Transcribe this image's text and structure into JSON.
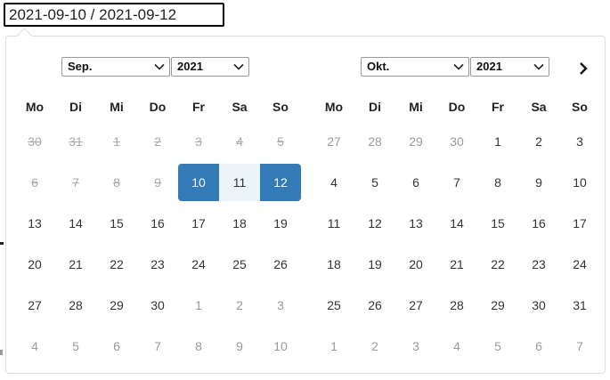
{
  "input": {
    "value": "2021-09-10 / 2021-09-12"
  },
  "weekdays": [
    "Mo",
    "Di",
    "Mi",
    "Do",
    "Fr",
    "Sa",
    "So"
  ],
  "left": {
    "month": "Sep.",
    "year": "2021",
    "weeks": [
      [
        {
          "d": "30",
          "s": "dis"
        },
        {
          "d": "31",
          "s": "dis"
        },
        {
          "d": "1",
          "s": "dis"
        },
        {
          "d": "2",
          "s": "dis"
        },
        {
          "d": "3",
          "s": "dis"
        },
        {
          "d": "4",
          "s": "dis"
        },
        {
          "d": "5",
          "s": "dis"
        }
      ],
      [
        {
          "d": "6",
          "s": "dis"
        },
        {
          "d": "7",
          "s": "dis"
        },
        {
          "d": "8",
          "s": "dis"
        },
        {
          "d": "9",
          "s": "dis"
        },
        {
          "d": "10",
          "s": "start"
        },
        {
          "d": "11",
          "s": "range"
        },
        {
          "d": "12",
          "s": "end"
        }
      ],
      [
        {
          "d": "13",
          "s": ""
        },
        {
          "d": "14",
          "s": ""
        },
        {
          "d": "15",
          "s": ""
        },
        {
          "d": "16",
          "s": ""
        },
        {
          "d": "17",
          "s": ""
        },
        {
          "d": "18",
          "s": ""
        },
        {
          "d": "19",
          "s": ""
        }
      ],
      [
        {
          "d": "20",
          "s": ""
        },
        {
          "d": "21",
          "s": ""
        },
        {
          "d": "22",
          "s": ""
        },
        {
          "d": "23",
          "s": ""
        },
        {
          "d": "24",
          "s": ""
        },
        {
          "d": "25",
          "s": ""
        },
        {
          "d": "26",
          "s": ""
        }
      ],
      [
        {
          "d": "27",
          "s": ""
        },
        {
          "d": "28",
          "s": ""
        },
        {
          "d": "29",
          "s": ""
        },
        {
          "d": "30",
          "s": ""
        },
        {
          "d": "1",
          "s": "off"
        },
        {
          "d": "2",
          "s": "off"
        },
        {
          "d": "3",
          "s": "off"
        }
      ],
      [
        {
          "d": "4",
          "s": "off"
        },
        {
          "d": "5",
          "s": "off"
        },
        {
          "d": "6",
          "s": "off"
        },
        {
          "d": "7",
          "s": "off"
        },
        {
          "d": "8",
          "s": "off"
        },
        {
          "d": "9",
          "s": "off"
        },
        {
          "d": "10",
          "s": "off"
        }
      ]
    ]
  },
  "right": {
    "month": "Okt.",
    "year": "2021",
    "weeks": [
      [
        {
          "d": "27",
          "s": "off"
        },
        {
          "d": "28",
          "s": "off"
        },
        {
          "d": "29",
          "s": "off"
        },
        {
          "d": "30",
          "s": "off"
        },
        {
          "d": "1",
          "s": ""
        },
        {
          "d": "2",
          "s": ""
        },
        {
          "d": "3",
          "s": ""
        }
      ],
      [
        {
          "d": "4",
          "s": ""
        },
        {
          "d": "5",
          "s": ""
        },
        {
          "d": "6",
          "s": ""
        },
        {
          "d": "7",
          "s": ""
        },
        {
          "d": "8",
          "s": ""
        },
        {
          "d": "9",
          "s": ""
        },
        {
          "d": "10",
          "s": ""
        }
      ],
      [
        {
          "d": "11",
          "s": ""
        },
        {
          "d": "12",
          "s": ""
        },
        {
          "d": "13",
          "s": ""
        },
        {
          "d": "14",
          "s": ""
        },
        {
          "d": "15",
          "s": ""
        },
        {
          "d": "16",
          "s": ""
        },
        {
          "d": "17",
          "s": ""
        }
      ],
      [
        {
          "d": "18",
          "s": ""
        },
        {
          "d": "19",
          "s": ""
        },
        {
          "d": "20",
          "s": ""
        },
        {
          "d": "21",
          "s": ""
        },
        {
          "d": "22",
          "s": ""
        },
        {
          "d": "23",
          "s": ""
        },
        {
          "d": "24",
          "s": ""
        }
      ],
      [
        {
          "d": "25",
          "s": ""
        },
        {
          "d": "26",
          "s": ""
        },
        {
          "d": "27",
          "s": ""
        },
        {
          "d": "28",
          "s": ""
        },
        {
          "d": "29",
          "s": ""
        },
        {
          "d": "30",
          "s": ""
        },
        {
          "d": "31",
          "s": ""
        }
      ],
      [
        {
          "d": "1",
          "s": "off"
        },
        {
          "d": "2",
          "s": "off"
        },
        {
          "d": "3",
          "s": "off"
        },
        {
          "d": "4",
          "s": "off"
        },
        {
          "d": "5",
          "s": "off"
        },
        {
          "d": "6",
          "s": "off"
        },
        {
          "d": "7",
          "s": "off"
        }
      ]
    ]
  },
  "icons": {
    "next": "chevron-right-icon",
    "select": "chevron-down-icon"
  },
  "colors": {
    "selected": "#337ab7",
    "in_range": "#ebf4f8",
    "disabled": "#aaaaaa",
    "off_month": "#999999"
  }
}
